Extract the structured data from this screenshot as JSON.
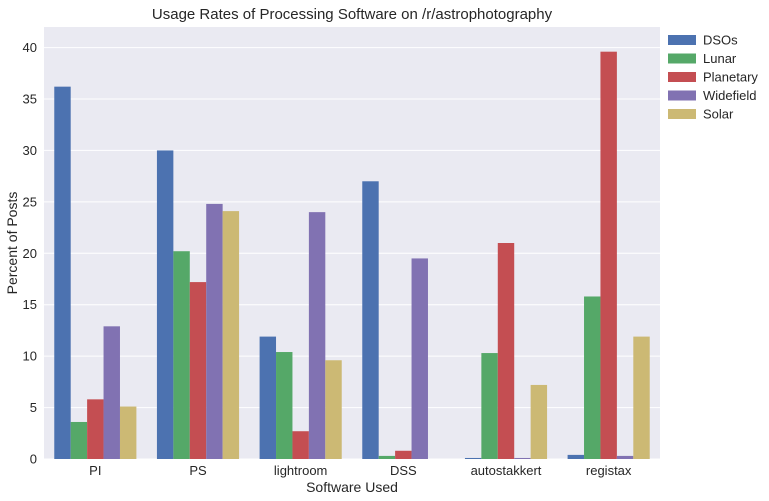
{
  "chart_data": {
    "type": "bar",
    "title": "Usage Rates of Processing Software on /r/astrophotography",
    "xlabel": "Software Used",
    "ylabel": "Percent of Posts",
    "ylim": [
      0,
      42
    ],
    "yticks": [
      0,
      5,
      10,
      15,
      20,
      25,
      30,
      35,
      40
    ],
    "grid": true,
    "legend_position": "outside-right-top",
    "categories": [
      "PI",
      "PS",
      "lightroom",
      "DSS",
      "autostakkert",
      "registax"
    ],
    "series": [
      {
        "name": "DSOs",
        "color": "#4c72b0",
        "values": [
          36.2,
          30.0,
          11.9,
          27.0,
          0.1,
          0.4
        ]
      },
      {
        "name": "Lunar",
        "color": "#55a868",
        "values": [
          3.6,
          20.2,
          10.4,
          0.3,
          10.3,
          15.8
        ]
      },
      {
        "name": "Planetary",
        "color": "#c44e52",
        "values": [
          5.8,
          17.2,
          2.7,
          0.8,
          21.0,
          39.6
        ]
      },
      {
        "name": "Widefield",
        "color": "#8172b2",
        "values": [
          12.9,
          24.8,
          24.0,
          19.5,
          0.1,
          0.3
        ]
      },
      {
        "name": "Solar",
        "color": "#ccb974",
        "values": [
          5.1,
          24.1,
          9.6,
          0.0,
          7.2,
          11.9
        ]
      }
    ]
  },
  "style": {
    "plot_background": "#eaeaf2",
    "grid_color": "#ffffff",
    "text_color": "#262626"
  }
}
